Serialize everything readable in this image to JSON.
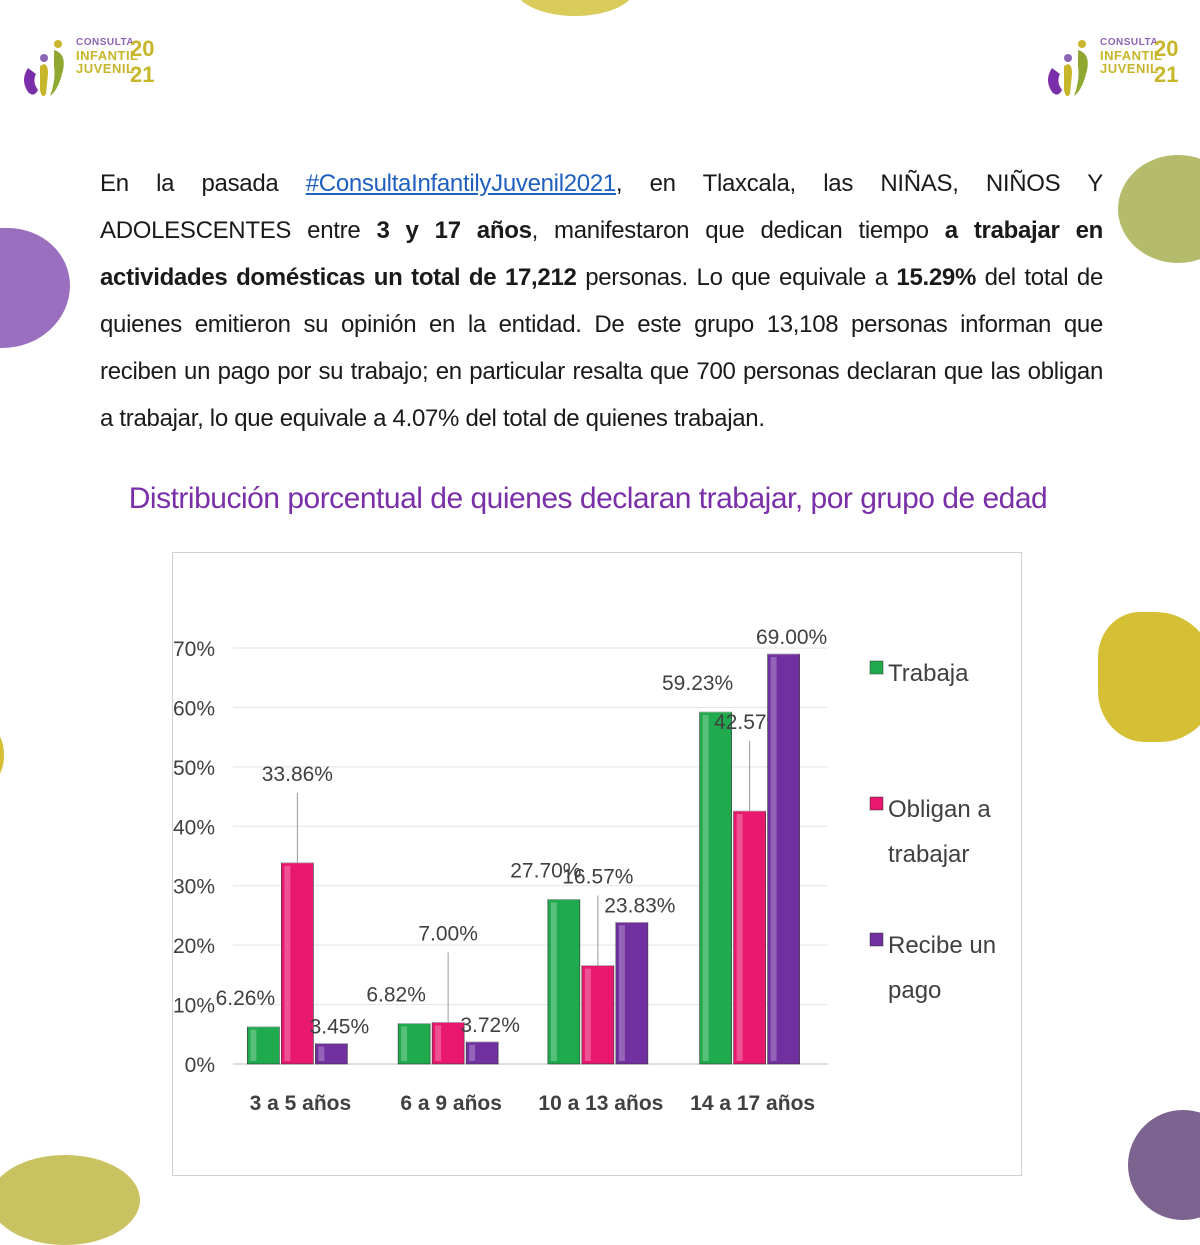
{
  "logo": {
    "line1": "CONSULTA",
    "line2": "INFANTIL",
    "line3": "JUVENIL",
    "year_top": "20",
    "year_bottom": "21"
  },
  "intro": {
    "s1": "En la pasada ",
    "hashtag": "#ConsultaInfantilyJuvenil2021",
    "s2": ", en Tlaxcala, las NIÑAS, NIÑOS Y ADOLESCENTES entre ",
    "b1": "3 y 17 años",
    "s3": ", manifestaron que dedican tiempo ",
    "b2": "a trabajar en actividades domésticas un total de 17,212",
    "s4": " personas. Lo que equivale a ",
    "b3": "15.29%",
    "s5": " del total de quienes emitieron su opinión en la entidad. De este grupo 13,108 personas informan que reciben un pago por su trabajo; en particular resalta que 700 personas declaran que las obligan a trabajar, lo que equivale a 4.07% del total de quienes trabajan."
  },
  "chart_data": {
    "type": "bar",
    "title": "Distribución porcentual de quienes declaran trabajar, por grupo de edad",
    "categories": [
      "3 a 5 años",
      "6 a 9 años",
      "10 a 13 años",
      "14 a 17 años"
    ],
    "series": [
      {
        "name": "Trabaja",
        "values": [
          6.26,
          6.82,
          27.7,
          59.23
        ],
        "labels": [
          "6.26%",
          "6.82%",
          "27.70%",
          "59.23%"
        ],
        "color": "#1faa4e"
      },
      {
        "name": "Obligan a trabajar",
        "values": [
          33.86,
          7.0,
          16.57,
          42.57
        ],
        "labels": [
          "33.86%",
          "7.00%",
          "16.57%",
          "42.57%"
        ],
        "color": "#e8186e"
      },
      {
        "name": "Recibe un pago",
        "values": [
          3.45,
          3.72,
          23.83,
          69.0
        ],
        "labels": [
          "3.45%",
          "3.72%",
          "23.83%",
          "69.00%"
        ],
        "color": "#7030a0"
      }
    ],
    "yticks": [
      "0%",
      "10%",
      "20%",
      "30%",
      "40%",
      "50%",
      "60%",
      "70%"
    ],
    "ylim": [
      0,
      70
    ],
    "grid": true,
    "legend_position": "right",
    "legend_lines": [
      [
        "Trabaja"
      ],
      [
        "Obligan a",
        "trabajar"
      ],
      [
        "Recibe un",
        "pago"
      ]
    ],
    "xlabel": "",
    "ylabel": ""
  }
}
